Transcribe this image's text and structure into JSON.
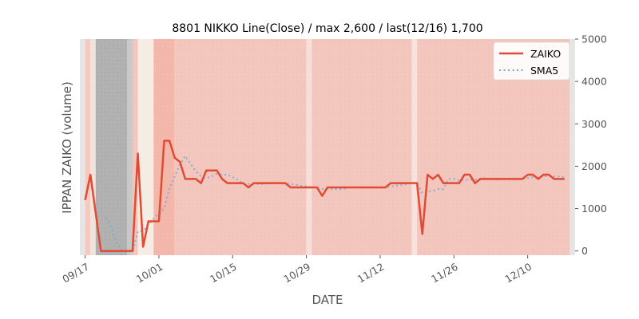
{
  "chart_data": {
    "type": "line",
    "title": "8801 NIKKO Line(Close) / max 2,600 / last(12/16) 1,700",
    "xlabel": "DATE",
    "ylabel": "IPPAN ZAIKO (volume)",
    "ylim": [
      -100,
      5000
    ],
    "yticks": [
      0,
      1000,
      2000,
      3000,
      4000,
      5000
    ],
    "xtick_labels": [
      "09/17",
      "10/01",
      "10/15",
      "10/29",
      "11/12",
      "11/26",
      "12/10"
    ],
    "xtick_dates": [
      "2023-09-17",
      "2023-10-01",
      "2023-10-15",
      "2023-10-29",
      "2023-11-12",
      "2023-11-26",
      "2023-12-10"
    ],
    "xlim": [
      "2023-09-16",
      "2023-12-19"
    ],
    "legend_position": "top-right",
    "grid": false,
    "series": [
      {
        "name": "ZAIKO",
        "color": "#e24a33",
        "style": "solid",
        "points": [
          [
            "2023-09-17",
            1200
          ],
          [
            "2023-09-18",
            1800
          ],
          [
            "2023-09-19",
            900
          ],
          [
            "2023-09-20",
            0
          ],
          [
            "2023-09-21",
            0
          ],
          [
            "2023-09-22",
            0
          ],
          [
            "2023-09-23",
            0
          ],
          [
            "2023-09-24",
            0
          ],
          [
            "2023-09-25",
            0
          ],
          [
            "2023-09-26",
            0
          ],
          [
            "2023-09-27",
            2300
          ],
          [
            "2023-09-28",
            100
          ],
          [
            "2023-09-29",
            700
          ],
          [
            "2023-09-30",
            700
          ],
          [
            "2023-10-01",
            700
          ],
          [
            "2023-10-02",
            2600
          ],
          [
            "2023-10-03",
            2600
          ],
          [
            "2023-10-04",
            2200
          ],
          [
            "2023-10-05",
            2100
          ],
          [
            "2023-10-06",
            1700
          ],
          [
            "2023-10-07",
            1700
          ],
          [
            "2023-10-08",
            1700
          ],
          [
            "2023-10-09",
            1600
          ],
          [
            "2023-10-10",
            1900
          ],
          [
            "2023-10-11",
            1900
          ],
          [
            "2023-10-12",
            1900
          ],
          [
            "2023-10-13",
            1700
          ],
          [
            "2023-10-14",
            1600
          ],
          [
            "2023-10-15",
            1600
          ],
          [
            "2023-10-16",
            1600
          ],
          [
            "2023-10-17",
            1600
          ],
          [
            "2023-10-18",
            1500
          ],
          [
            "2023-10-19",
            1600
          ],
          [
            "2023-10-20",
            1600
          ],
          [
            "2023-10-21",
            1600
          ],
          [
            "2023-10-22",
            1600
          ],
          [
            "2023-10-23",
            1600
          ],
          [
            "2023-10-24",
            1600
          ],
          [
            "2023-10-25",
            1600
          ],
          [
            "2023-10-26",
            1500
          ],
          [
            "2023-10-27",
            1500
          ],
          [
            "2023-10-28",
            1500
          ],
          [
            "2023-10-29",
            1500
          ],
          [
            "2023-10-30",
            1500
          ],
          [
            "2023-10-31",
            1500
          ],
          [
            "2023-11-01",
            1300
          ],
          [
            "2023-11-02",
            1500
          ],
          [
            "2023-11-03",
            1500
          ],
          [
            "2023-11-04",
            1500
          ],
          [
            "2023-11-05",
            1500
          ],
          [
            "2023-11-06",
            1500
          ],
          [
            "2023-11-07",
            1500
          ],
          [
            "2023-11-08",
            1500
          ],
          [
            "2023-11-09",
            1500
          ],
          [
            "2023-11-10",
            1500
          ],
          [
            "2023-11-11",
            1500
          ],
          [
            "2023-11-12",
            1500
          ],
          [
            "2023-11-13",
            1500
          ],
          [
            "2023-11-14",
            1600
          ],
          [
            "2023-11-15",
            1600
          ],
          [
            "2023-11-16",
            1600
          ],
          [
            "2023-11-17",
            1600
          ],
          [
            "2023-11-18",
            1600
          ],
          [
            "2023-11-19",
            1600
          ],
          [
            "2023-11-20",
            400
          ],
          [
            "2023-11-21",
            1800
          ],
          [
            "2023-11-22",
            1700
          ],
          [
            "2023-11-23",
            1800
          ],
          [
            "2023-11-24",
            1600
          ],
          [
            "2023-11-25",
            1600
          ],
          [
            "2023-11-26",
            1600
          ],
          [
            "2023-11-27",
            1600
          ],
          [
            "2023-11-28",
            1800
          ],
          [
            "2023-11-29",
            1800
          ],
          [
            "2023-11-30",
            1600
          ],
          [
            "2023-12-01",
            1700
          ],
          [
            "2023-12-02",
            1700
          ],
          [
            "2023-12-03",
            1700
          ],
          [
            "2023-12-04",
            1700
          ],
          [
            "2023-12-05",
            1700
          ],
          [
            "2023-12-06",
            1700
          ],
          [
            "2023-12-07",
            1700
          ],
          [
            "2023-12-08",
            1700
          ],
          [
            "2023-12-09",
            1700
          ],
          [
            "2023-12-10",
            1800
          ],
          [
            "2023-12-11",
            1800
          ],
          [
            "2023-12-12",
            1700
          ],
          [
            "2023-12-13",
            1800
          ],
          [
            "2023-12-14",
            1800
          ],
          [
            "2023-12-15",
            1700
          ],
          [
            "2023-12-16",
            1700
          ],
          [
            "2023-12-17",
            1700
          ]
        ]
      },
      {
        "name": "SMA5",
        "color": "#7aa6d2",
        "style": "dotted",
        "points": [
          [
            "2023-09-21",
            780
          ],
          [
            "2023-09-22",
            540
          ],
          [
            "2023-09-23",
            180
          ],
          [
            "2023-09-24",
            0
          ],
          [
            "2023-09-25",
            0
          ],
          [
            "2023-09-26",
            0
          ],
          [
            "2023-09-27",
            460
          ],
          [
            "2023-09-28",
            480
          ],
          [
            "2023-09-29",
            620
          ],
          [
            "2023-09-30",
            760
          ],
          [
            "2023-10-01",
            900
          ],
          [
            "2023-10-02",
            1000
          ],
          [
            "2023-10-03",
            1460
          ],
          [
            "2023-10-04",
            1760
          ],
          [
            "2023-10-05",
            2040
          ],
          [
            "2023-10-06",
            2240
          ],
          [
            "2023-10-07",
            2060
          ],
          [
            "2023-10-08",
            1880
          ],
          [
            "2023-10-09",
            1760
          ],
          [
            "2023-10-10",
            1720
          ],
          [
            "2023-10-11",
            1760
          ],
          [
            "2023-10-12",
            1820
          ],
          [
            "2023-10-13",
            1800
          ],
          [
            "2023-10-14",
            1800
          ],
          [
            "2023-10-15",
            1740
          ],
          [
            "2023-10-16",
            1680
          ],
          [
            "2023-10-17",
            1580
          ],
          [
            "2023-10-18",
            1580
          ],
          [
            "2023-10-19",
            1580
          ],
          [
            "2023-10-20",
            1580
          ],
          [
            "2023-10-21",
            1580
          ],
          [
            "2023-10-22",
            1600
          ],
          [
            "2023-10-23",
            1600
          ],
          [
            "2023-10-24",
            1600
          ],
          [
            "2023-10-25",
            1600
          ],
          [
            "2023-10-26",
            1580
          ],
          [
            "2023-10-27",
            1560
          ],
          [
            "2023-10-28",
            1540
          ],
          [
            "2023-10-29",
            1520
          ],
          [
            "2023-10-30",
            1500
          ],
          [
            "2023-10-31",
            1500
          ],
          [
            "2023-11-01",
            1460
          ],
          [
            "2023-11-02",
            1460
          ],
          [
            "2023-11-03",
            1460
          ],
          [
            "2023-11-04",
            1460
          ],
          [
            "2023-11-05",
            1460
          ],
          [
            "2023-11-06",
            1500
          ],
          [
            "2023-11-07",
            1500
          ],
          [
            "2023-11-08",
            1500
          ],
          [
            "2023-11-09",
            1500
          ],
          [
            "2023-11-10",
            1500
          ],
          [
            "2023-11-11",
            1500
          ],
          [
            "2023-11-12",
            1500
          ],
          [
            "2023-11-13",
            1500
          ],
          [
            "2023-11-14",
            1520
          ],
          [
            "2023-11-15",
            1540
          ],
          [
            "2023-11-16",
            1560
          ],
          [
            "2023-11-17",
            1580
          ],
          [
            "2023-11-18",
            1600
          ],
          [
            "2023-11-19",
            1600
          ],
          [
            "2023-11-20",
            1360
          ],
          [
            "2023-11-21",
            1400
          ],
          [
            "2023-11-22",
            1420
          ],
          [
            "2023-11-23",
            1460
          ],
          [
            "2023-11-24",
            1460
          ],
          [
            "2023-11-25",
            1700
          ],
          [
            "2023-11-26",
            1700
          ],
          [
            "2023-11-27",
            1660
          ],
          [
            "2023-11-28",
            1680
          ],
          [
            "2023-11-29",
            1680
          ],
          [
            "2023-11-30",
            1680
          ],
          [
            "2023-12-01",
            1700
          ],
          [
            "2023-12-02",
            1720
          ],
          [
            "2023-12-03",
            1700
          ],
          [
            "2023-12-04",
            1680
          ],
          [
            "2023-12-05",
            1700
          ],
          [
            "2023-12-06",
            1700
          ],
          [
            "2023-12-07",
            1700
          ],
          [
            "2023-12-08",
            1700
          ],
          [
            "2023-12-09",
            1700
          ],
          [
            "2023-12-10",
            1720
          ],
          [
            "2023-12-11",
            1740
          ],
          [
            "2023-12-12",
            1740
          ],
          [
            "2023-12-13",
            1760
          ],
          [
            "2023-12-14",
            1780
          ],
          [
            "2023-12-15",
            1760
          ],
          [
            "2023-12-16",
            1760
          ],
          [
            "2023-12-17",
            1740
          ]
        ]
      }
    ],
    "background_bands": [
      {
        "from": "2023-09-16",
        "to": "2023-09-17",
        "color": "#e5e5e5"
      },
      {
        "from": "2023-09-17",
        "to": "2023-09-18",
        "color": "#f6c9bf"
      },
      {
        "from": "2023-09-18",
        "to": "2023-09-19",
        "color": "#efe3dc"
      },
      {
        "from": "2023-09-19",
        "to": "2023-09-25",
        "color": "#b0b0b0"
      },
      {
        "from": "2023-09-25",
        "to": "2023-09-26",
        "color": "#c8c8c8"
      },
      {
        "from": "2023-09-26",
        "to": "2023-09-27",
        "color": "#f2c4ba"
      },
      {
        "from": "2023-09-27",
        "to": "2023-09-30",
        "color": "#f5ece4"
      },
      {
        "from": "2023-09-30",
        "to": "2023-10-04",
        "color": "#f3b6aa"
      },
      {
        "from": "2023-10-04",
        "to": "2023-10-29",
        "color": "#f3c6bd"
      },
      {
        "from": "2023-10-29",
        "to": "2023-10-30",
        "color": "#f7dfd8"
      },
      {
        "from": "2023-10-30",
        "to": "2023-11-18",
        "color": "#f3c6bd"
      },
      {
        "from": "2023-11-18",
        "to": "2023-11-19",
        "color": "#f7e2dc"
      },
      {
        "from": "2023-11-19",
        "to": "2023-12-18",
        "color": "#f3c6bd"
      },
      {
        "from": "2023-12-18",
        "to": "2023-12-19",
        "color": "#e5e5e5"
      }
    ]
  }
}
